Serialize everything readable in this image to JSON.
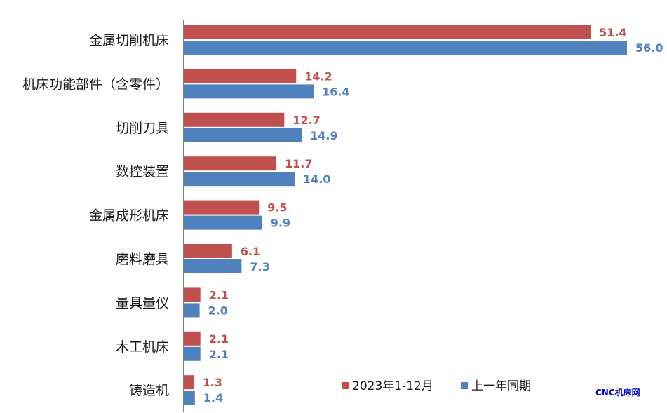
{
  "chart_data": {
    "type": "bar",
    "orientation": "horizontal",
    "categories": [
      "金属切削机床",
      "机床功能部件（含零件）",
      "切削刀具",
      "数控装置",
      "金属成形机床",
      "磨料磨具",
      "量具量仪",
      "木工机床",
      "铸造机"
    ],
    "series": [
      {
        "name": "2023年1-12月",
        "color": "#C0504D",
        "values": [
          51.4,
          14.2,
          12.7,
          11.7,
          9.5,
          6.1,
          2.1,
          2.1,
          1.3
        ]
      },
      {
        "name": "上一年同期",
        "color": "#4F81BD",
        "values": [
          56.0,
          16.4,
          14.9,
          14.0,
          9.9,
          7.3,
          2.0,
          2.1,
          1.4
        ]
      }
    ],
    "value_labels": true,
    "grid": false,
    "legend_position": "bottom-right",
    "xlim": [
      0,
      56
    ]
  },
  "watermark": "CNC机床网",
  "colors": {
    "axis": "#7f7f7f",
    "series_1": "#C0504D",
    "series_2": "#4F81BD",
    "watermark": "#0000cc"
  }
}
